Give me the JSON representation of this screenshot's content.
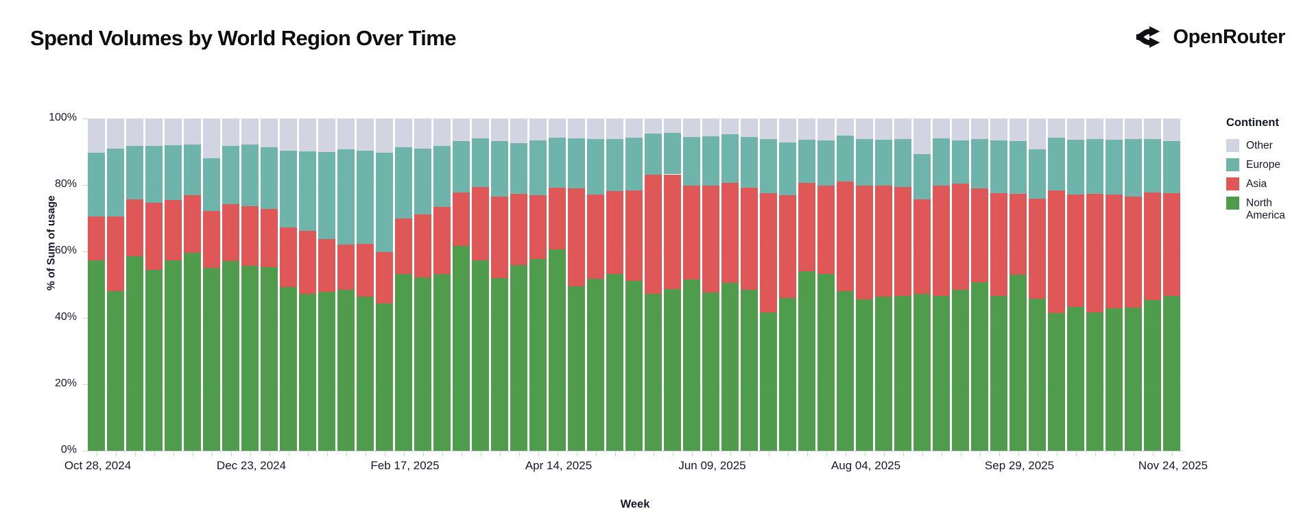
{
  "header": {
    "title": "Spend Volumes by World Region Over Time",
    "brand": "OpenRouter"
  },
  "chart_data": {
    "type": "bar",
    "variant": "stacked-normalized",
    "title": "Spend Volumes by World Region Over Time",
    "xlabel": "Week",
    "ylabel": "% of Sum of usage",
    "ylim": [
      0,
      100
    ],
    "grid": "horizontal",
    "ytick_labels": [
      "0%",
      "20%",
      "40%",
      "60%",
      "80%",
      "100%"
    ],
    "xtick_weeks": [
      0,
      8,
      16,
      24,
      32,
      40,
      48,
      56
    ],
    "xtick_labels": [
      "Oct 28, 2024",
      "Dec 23, 2024",
      "Feb 17, 2025",
      "Apr 14, 2025",
      "Jun 09, 2025",
      "Aug 04, 2025",
      "Sep 29, 2025",
      "Nov 24, 2025"
    ],
    "legend": {
      "title": "Continent",
      "position": "right",
      "entries": [
        {
          "label": "Other",
          "color": "#d2d4e1"
        },
        {
          "label": "Europe",
          "color": "#6fb4ab"
        },
        {
          "label": "Asia",
          "color": "#e05757"
        },
        {
          "label": "North America",
          "color": "#4f9d4c"
        }
      ]
    },
    "categories": [
      "Oct 28, 2024",
      "Nov 04, 2024",
      "Nov 11, 2024",
      "Nov 18, 2024",
      "Nov 25, 2024",
      "Dec 02, 2024",
      "Dec 09, 2024",
      "Dec 16, 2024",
      "Dec 23, 2024",
      "Dec 30, 2024",
      "Jan 06, 2025",
      "Jan 13, 2025",
      "Jan 20, 2025",
      "Jan 27, 2025",
      "Feb 03, 2025",
      "Feb 10, 2025",
      "Feb 17, 2025",
      "Feb 24, 2025",
      "Mar 03, 2025",
      "Mar 10, 2025",
      "Mar 17, 2025",
      "Mar 24, 2025",
      "Mar 31, 2025",
      "Apr 07, 2025",
      "Apr 14, 2025",
      "Apr 21, 2025",
      "Apr 28, 2025",
      "May 05, 2025",
      "May 12, 2025",
      "May 19, 2025",
      "May 26, 2025",
      "Jun 02, 2025",
      "Jun 09, 2025",
      "Jun 16, 2025",
      "Jun 23, 2025",
      "Jun 30, 2025",
      "Jul 07, 2025",
      "Jul 14, 2025",
      "Jul 21, 2025",
      "Jul 28, 2025",
      "Aug 04, 2025",
      "Aug 11, 2025",
      "Aug 18, 2025",
      "Aug 25, 2025",
      "Sep 01, 2025",
      "Sep 08, 2025",
      "Sep 15, 2025",
      "Sep 22, 2025",
      "Sep 29, 2025",
      "Oct 06, 2025",
      "Oct 13, 2025",
      "Oct 20, 2025",
      "Oct 27, 2025",
      "Nov 03, 2025",
      "Nov 10, 2025",
      "Nov 17, 2025",
      "Nov 24, 2025"
    ],
    "series": [
      {
        "name": "North America",
        "color": "#4f9d4c",
        "values": [
          57.4,
          48.1,
          58.5,
          54.4,
          57.4,
          59.5,
          55.1,
          57.2,
          55.6,
          55.2,
          49.3,
          47.3,
          47.9,
          48.4,
          46.3,
          44.4,
          53.3,
          52.2,
          53.1,
          61.6,
          57.3,
          51.9,
          55.8,
          57.8,
          60.6,
          49.4,
          51.7,
          53.3,
          51.2,
          47.2,
          48.7,
          51.5,
          47.7,
          50.5,
          48.4,
          41.7,
          46.0,
          54.0,
          53.1,
          48.0,
          45.5,
          46.4,
          46.6,
          47.3,
          46.6,
          48.4,
          50.8,
          46.5,
          53.0,
          45.8,
          41.5,
          43.2,
          41.7,
          42.9,
          43.1,
          45.3,
          46.5
        ]
      },
      {
        "name": "Asia",
        "color": "#e05757",
        "values": [
          13.1,
          22.5,
          17.2,
          20.2,
          18.1,
          17.5,
          17.1,
          17.0,
          18.0,
          17.5,
          17.9,
          18.9,
          15.8,
          13.6,
          16.0,
          15.4,
          16.7,
          19.0,
          20.3,
          16.1,
          22.1,
          24.5,
          21.5,
          19.2,
          18.5,
          29.5,
          25.4,
          24.8,
          27.2,
          35.8,
          34.5,
          28.3,
          32.2,
          30.1,
          30.8,
          35.8,
          31.0,
          26.6,
          26.6,
          33.1,
          34.4,
          33.3,
          32.7,
          28.3,
          33.3,
          32.1,
          28.2,
          31.0,
          24.3,
          30.1,
          36.9,
          33.9,
          35.6,
          34.2,
          33.3,
          32.4,
          31.0
        ]
      },
      {
        "name": "Europe",
        "color": "#6fb4ab",
        "values": [
          19.1,
          20.4,
          16.0,
          17.2,
          16.5,
          15.2,
          15.9,
          17.6,
          18.5,
          18.7,
          23.2,
          24.0,
          26.3,
          28.7,
          28.0,
          29.9,
          21.4,
          19.8,
          18.4,
          15.5,
          14.7,
          16.7,
          15.3,
          16.5,
          15.2,
          15.2,
          16.7,
          15.8,
          15.9,
          12.5,
          12.5,
          14.7,
          14.7,
          14.6,
          15.3,
          16.4,
          15.7,
          13.0,
          13.7,
          13.7,
          13.9,
          13.9,
          14.5,
          13.7,
          14.2,
          12.9,
          14.9,
          15.9,
          15.9,
          14.8,
          15.9,
          16.5,
          16.6,
          16.5,
          17.4,
          16.1,
          15.6
        ]
      },
      {
        "name": "Other",
        "color": "#d2d4e1",
        "values": [
          10.4,
          9.0,
          8.3,
          8.2,
          8.0,
          7.8,
          11.9,
          8.2,
          7.9,
          8.6,
          9.6,
          9.8,
          10.0,
          9.3,
          9.7,
          10.3,
          8.6,
          9.0,
          8.2,
          6.8,
          5.9,
          6.9,
          7.4,
          6.5,
          5.7,
          5.9,
          6.2,
          6.1,
          5.7,
          4.5,
          4.3,
          5.5,
          5.4,
          4.8,
          5.5,
          6.1,
          7.3,
          6.4,
          6.6,
          5.2,
          6.2,
          6.4,
          6.2,
          10.7,
          5.9,
          6.6,
          6.1,
          6.6,
          6.8,
          9.3,
          5.7,
          6.4,
          6.1,
          6.4,
          6.2,
          6.2,
          6.9
        ]
      }
    ]
  }
}
